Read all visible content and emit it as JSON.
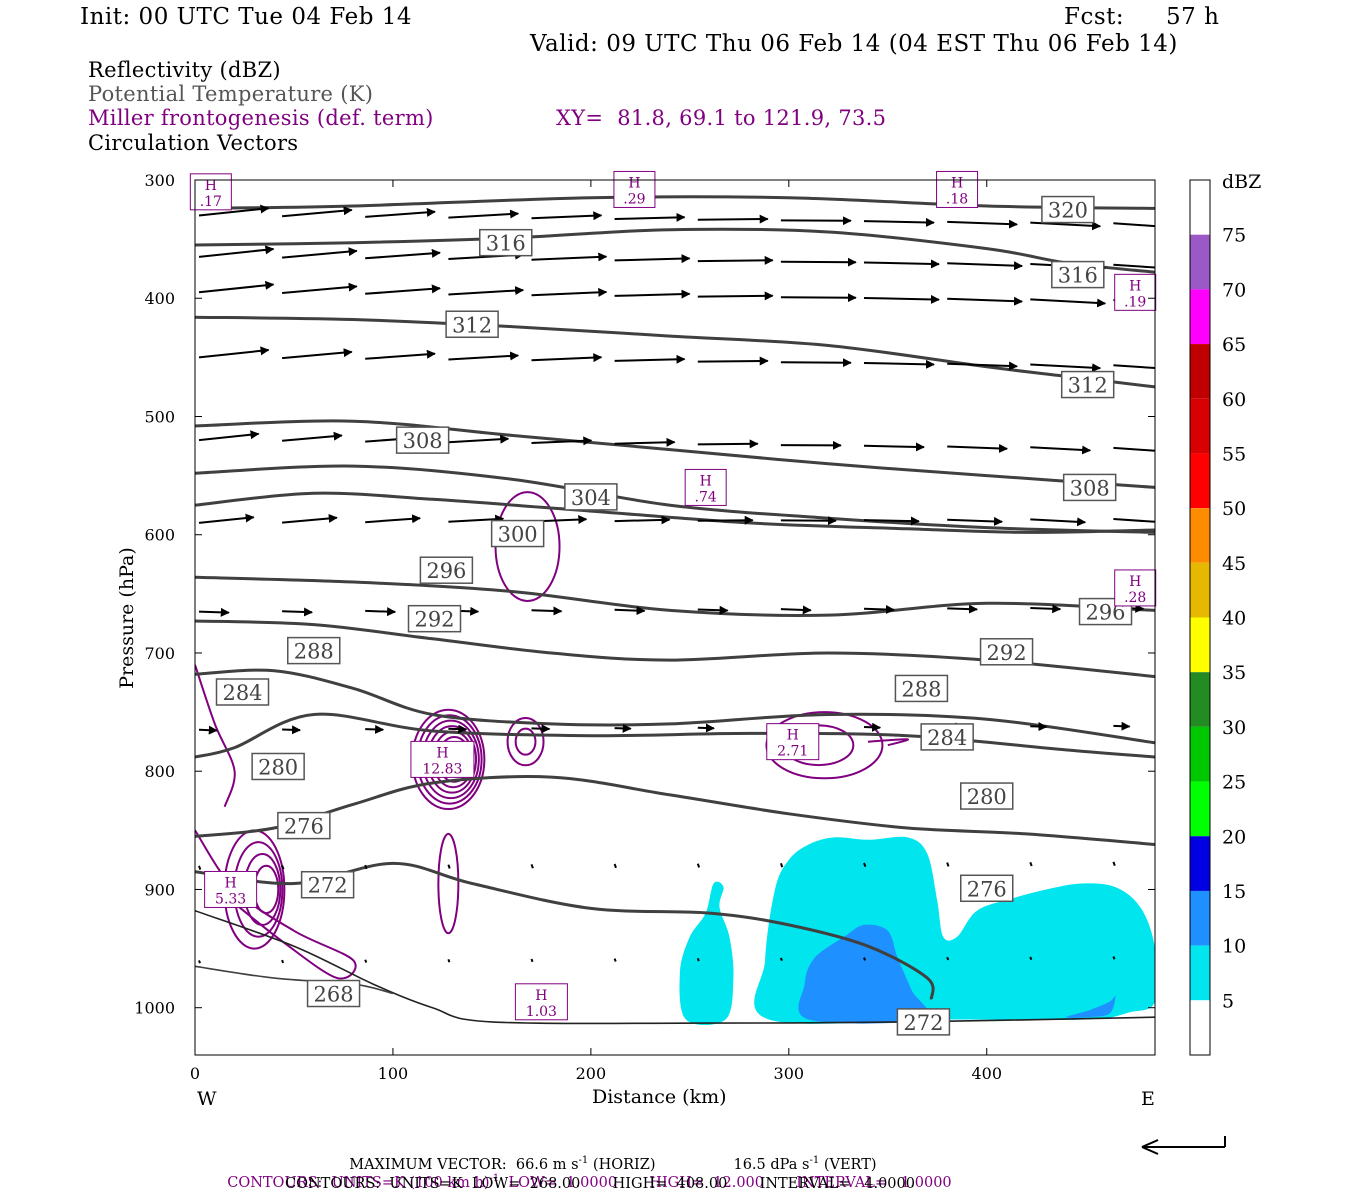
{
  "header": {
    "init": "Init: 00 UTC Tue 04 Feb 14",
    "fcst_label": "Fcst:",
    "fcst_value": "57 h",
    "valid": "Valid: 09 UTC Thu 06 Feb 14 (04 EST Thu 06 Feb 14)"
  },
  "legend": {
    "reflectivity": "Reflectivity (dBZ)",
    "theta": "Potential Temperature (K)",
    "frontogenesis": "Miller frontogenesis (def. term)",
    "xy": "XY=  81.8, 69.1 to 121.9, 73.5",
    "vectors": "Circulation Vectors"
  },
  "footer": {
    "max_vector": "MAXIMUM VECTOR:  66.6 m s",
    "max_vector_horiz": " (HORIZ)",
    "max_vector_vert_value": "16.5 dPa s",
    "max_vector_vert": " (VERT)",
    "contours_1": "CONTOURS:  UNITS=K (100 km h)",
    "contours_1b": "  LOW=  1.0000       HIGH=  12.000       INTERVAL=   1.0000",
    "contours_2": "CONTOURS:  UNITS=K  LOW=  268.00       HIGH=  408.00       INTERVAL=   4.0000"
  },
  "colors": {
    "theta": "#404040",
    "fronto": "#800080",
    "refl_5": "#00e5ee",
    "refl_10": "#1e90ff",
    "vector": "#000000"
  },
  "chart_data": {
    "type": "cross-section",
    "xlabel": "Distance (km)",
    "ylabel": "Pressure (hPa)",
    "xlim": [
      0,
      485
    ],
    "ylim": [
      1040,
      300
    ],
    "x_ticks": [
      0,
      100,
      200,
      300,
      400
    ],
    "y_ticks": [
      300,
      400,
      500,
      600,
      700,
      800,
      900,
      1000
    ],
    "x_left_label": "W",
    "x_right_label": "E",
    "colorbar": {
      "unit": "dBZ",
      "labels": [
        "75",
        "70",
        "65",
        "60",
        "55",
        "50",
        "45",
        "40",
        "35",
        "30",
        "25",
        "20",
        "15",
        "10",
        "5"
      ],
      "colors": [
        "#ffffff",
        "#9b59c7",
        "#ff00ff",
        "#c00000",
        "#d80000",
        "#ff0000",
        "#ff8c00",
        "#e6b800",
        "#ffff00",
        "#228b22",
        "#00c800",
        "#00ff00",
        "#0000e0",
        "#1e90ff",
        "#00e5ee",
        "#ffffff"
      ]
    },
    "theta_contours": [
      {
        "value": 320,
        "points": [
          [
            0,
            324
          ],
          [
            80,
            322
          ],
          [
            200,
            315
          ],
          [
            300,
            315
          ],
          [
            400,
            322
          ],
          [
            485,
            324
          ]
        ]
      },
      {
        "value": 316,
        "points": [
          [
            0,
            355
          ],
          [
            80,
            353
          ],
          [
            160,
            349
          ],
          [
            240,
            342
          ],
          [
            320,
            344
          ],
          [
            400,
            358
          ],
          [
            440,
            370
          ],
          [
            485,
            378
          ]
        ]
      },
      {
        "value": 312,
        "points": [
          [
            0,
            416
          ],
          [
            80,
            418
          ],
          [
            160,
            424
          ],
          [
            240,
            432
          ],
          [
            320,
            440
          ],
          [
            400,
            458
          ],
          [
            440,
            466
          ],
          [
            485,
            475
          ]
        ]
      },
      {
        "value": 308,
        "points": [
          [
            0,
            508
          ],
          [
            80,
            504
          ],
          [
            160,
            516
          ],
          [
            240,
            528
          ],
          [
            320,
            540
          ],
          [
            400,
            550
          ],
          [
            485,
            560
          ]
        ]
      },
      {
        "value": 304,
        "points": [
          [
            0,
            575
          ],
          [
            60,
            565
          ],
          [
            120,
            570
          ],
          [
            200,
            580
          ],
          [
            280,
            590
          ],
          [
            360,
            595
          ],
          [
            420,
            598
          ],
          [
            485,
            596
          ]
        ]
      },
      {
        "value": 300,
        "points": [
          [
            0,
            548
          ],
          [
            80,
            542
          ],
          [
            160,
            553
          ],
          [
            240,
            575
          ],
          [
            320,
            586
          ],
          [
            400,
            594
          ],
          [
            485,
            598
          ]
        ]
      },
      {
        "value": 296,
        "points": [
          [
            0,
            636
          ],
          [
            80,
            640
          ],
          [
            160,
            648
          ],
          [
            240,
            664
          ],
          [
            320,
            668
          ],
          [
            400,
            658
          ],
          [
            485,
            664
          ]
        ]
      },
      {
        "value": 292,
        "points": [
          [
            0,
            673
          ],
          [
            60,
            676
          ],
          [
            120,
            688
          ],
          [
            180,
            700
          ],
          [
            240,
            706
          ],
          [
            320,
            700
          ],
          [
            400,
            706
          ],
          [
            485,
            720
          ]
        ]
      },
      {
        "value": 288,
        "points": [
          [
            0,
            718
          ],
          [
            40,
            715
          ],
          [
            80,
            730
          ],
          [
            120,
            752
          ],
          [
            180,
            760
          ],
          [
            240,
            760
          ],
          [
            320,
            752
          ],
          [
            400,
            756
          ],
          [
            485,
            776
          ]
        ]
      },
      {
        "value": 284,
        "points": [
          [
            0,
            788
          ],
          [
            20,
            780
          ],
          [
            60,
            752
          ],
          [
            120,
            766
          ],
          [
            200,
            770
          ],
          [
            280,
            768
          ],
          [
            360,
            770
          ],
          [
            440,
            782
          ],
          [
            485,
            788
          ]
        ]
      },
      {
        "value": 280,
        "points": [
          [
            0,
            855
          ],
          [
            40,
            848
          ],
          [
            80,
            828
          ],
          [
            120,
            810
          ],
          [
            180,
            805
          ],
          [
            240,
            820
          ],
          [
            300,
            836
          ],
          [
            360,
            848
          ],
          [
            420,
            853
          ],
          [
            485,
            862
          ]
        ]
      },
      {
        "value": 276,
        "points": [
          [
            0,
            885
          ],
          [
            50,
            895
          ],
          [
            100,
            878
          ],
          [
            140,
            895
          ],
          [
            200,
            916
          ],
          [
            260,
            920
          ],
          [
            300,
            930
          ],
          [
            340,
            948
          ],
          [
            370,
            975
          ],
          [
            372,
            993
          ]
        ]
      },
      {
        "value": 272,
        "points": [
          [
            0,
            918
          ],
          [
            50,
            948
          ],
          [
            90,
            980
          ],
          [
            120,
            1000
          ],
          [
            150,
            1012
          ],
          [
            260,
            1013
          ],
          [
            360,
            1012
          ],
          [
            485,
            1008
          ]
        ]
      },
      {
        "value": 268,
        "points": [
          [
            0,
            965
          ],
          [
            40,
            975
          ],
          [
            80,
            980
          ],
          [
            100,
            988
          ]
        ]
      }
    ],
    "theta_labels": [
      {
        "text": "320",
        "x": 441,
        "p": 325
      },
      {
        "text": "316",
        "x": 157,
        "p": 353
      },
      {
        "text": "316",
        "x": 446,
        "p": 380
      },
      {
        "text": "312",
        "x": 140,
        "p": 422
      },
      {
        "text": "312",
        "x": 451,
        "p": 473
      },
      {
        "text": "308",
        "x": 115,
        "p": 520
      },
      {
        "text": "308",
        "x": 452,
        "p": 560
      },
      {
        "text": "304",
        "x": 200,
        "p": 568
      },
      {
        "text": "300",
        "x": 163,
        "p": 599
      },
      {
        "text": "296",
        "x": 127,
        "p": 630
      },
      {
        "text": "296",
        "x": 460,
        "p": 665
      },
      {
        "text": "292",
        "x": 121,
        "p": 671
      },
      {
        "text": "292",
        "x": 410,
        "p": 699
      },
      {
        "text": "288",
        "x": 60,
        "p": 698
      },
      {
        "text": "288",
        "x": 367,
        "p": 730
      },
      {
        "text": "284",
        "x": 24,
        "p": 733
      },
      {
        "text": "284",
        "x": 380,
        "p": 771
      },
      {
        "text": "280",
        "x": 42,
        "p": 796
      },
      {
        "text": "280",
        "x": 400,
        "p": 821
      },
      {
        "text": "276",
        "x": 55,
        "p": 846
      },
      {
        "text": "276",
        "x": 400,
        "p": 899
      },
      {
        "text": "272",
        "x": 67,
        "p": 896
      },
      {
        "text": "272",
        "x": 368,
        "p": 1012
      },
      {
        "text": "268",
        "x": 70,
        "p": 988
      }
    ],
    "reflectivity_5dbz": [
      [
        [
          248,
          1010
        ],
        [
          245,
          970
        ],
        [
          250,
          940
        ],
        [
          258,
          920
        ],
        [
          262,
          895
        ],
        [
          267,
          898
        ],
        [
          265,
          915
        ],
        [
          270,
          940
        ],
        [
          272,
          975
        ],
        [
          268,
          1010
        ]
      ],
      [
        [
          290,
          1010
        ],
        [
          288,
          960
        ],
        [
          293,
          900
        ],
        [
          300,
          875
        ],
        [
          310,
          862
        ],
        [
          323,
          856
        ],
        [
          340,
          858
        ],
        [
          360,
          856
        ],
        [
          370,
          870
        ],
        [
          375,
          910
        ],
        [
          378,
          940
        ],
        [
          385,
          940
        ],
        [
          395,
          918
        ],
        [
          412,
          908
        ],
        [
          430,
          900
        ],
        [
          448,
          895
        ],
        [
          465,
          898
        ],
        [
          478,
          916
        ],
        [
          485,
          950
        ],
        [
          485,
          995
        ],
        [
          472,
          1004
        ],
        [
          450,
          1010
        ],
        [
          380,
          1010
        ]
      ]
    ],
    "reflectivity_10dbz": [
      [
        [
          310,
          1010
        ],
        [
          308,
          980
        ],
        [
          313,
          958
        ],
        [
          328,
          940
        ],
        [
          338,
          930
        ],
        [
          350,
          935
        ],
        [
          355,
          958
        ],
        [
          362,
          985
        ],
        [
          368,
          1010
        ]
      ],
      [
        [
          440,
          1008
        ],
        [
          452,
          1002
        ],
        [
          462,
          995
        ],
        [
          465,
          990
        ],
        [
          462,
          1005
        ],
        [
          450,
          1008
        ]
      ]
    ],
    "fronto_maxima": [
      {
        "x": 8,
        "p": 310,
        "label": ".17"
      },
      {
        "x": 222,
        "p": 308,
        "label": ".29"
      },
      {
        "x": 385,
        "p": 308,
        "label": ".18"
      },
      {
        "x": 475,
        "p": 395,
        "label": ".19"
      },
      {
        "x": 258,
        "p": 560,
        "label": ".74"
      },
      {
        "x": 475,
        "p": 645,
        "label": ".28"
      },
      {
        "x": 125,
        "p": 790,
        "label": "12.83"
      },
      {
        "x": 302,
        "p": 775,
        "label": "2.71"
      },
      {
        "x": 18,
        "p": 900,
        "label": "5.33"
      },
      {
        "x": 175,
        "p": 995,
        "label": "1.03"
      }
    ]
  }
}
